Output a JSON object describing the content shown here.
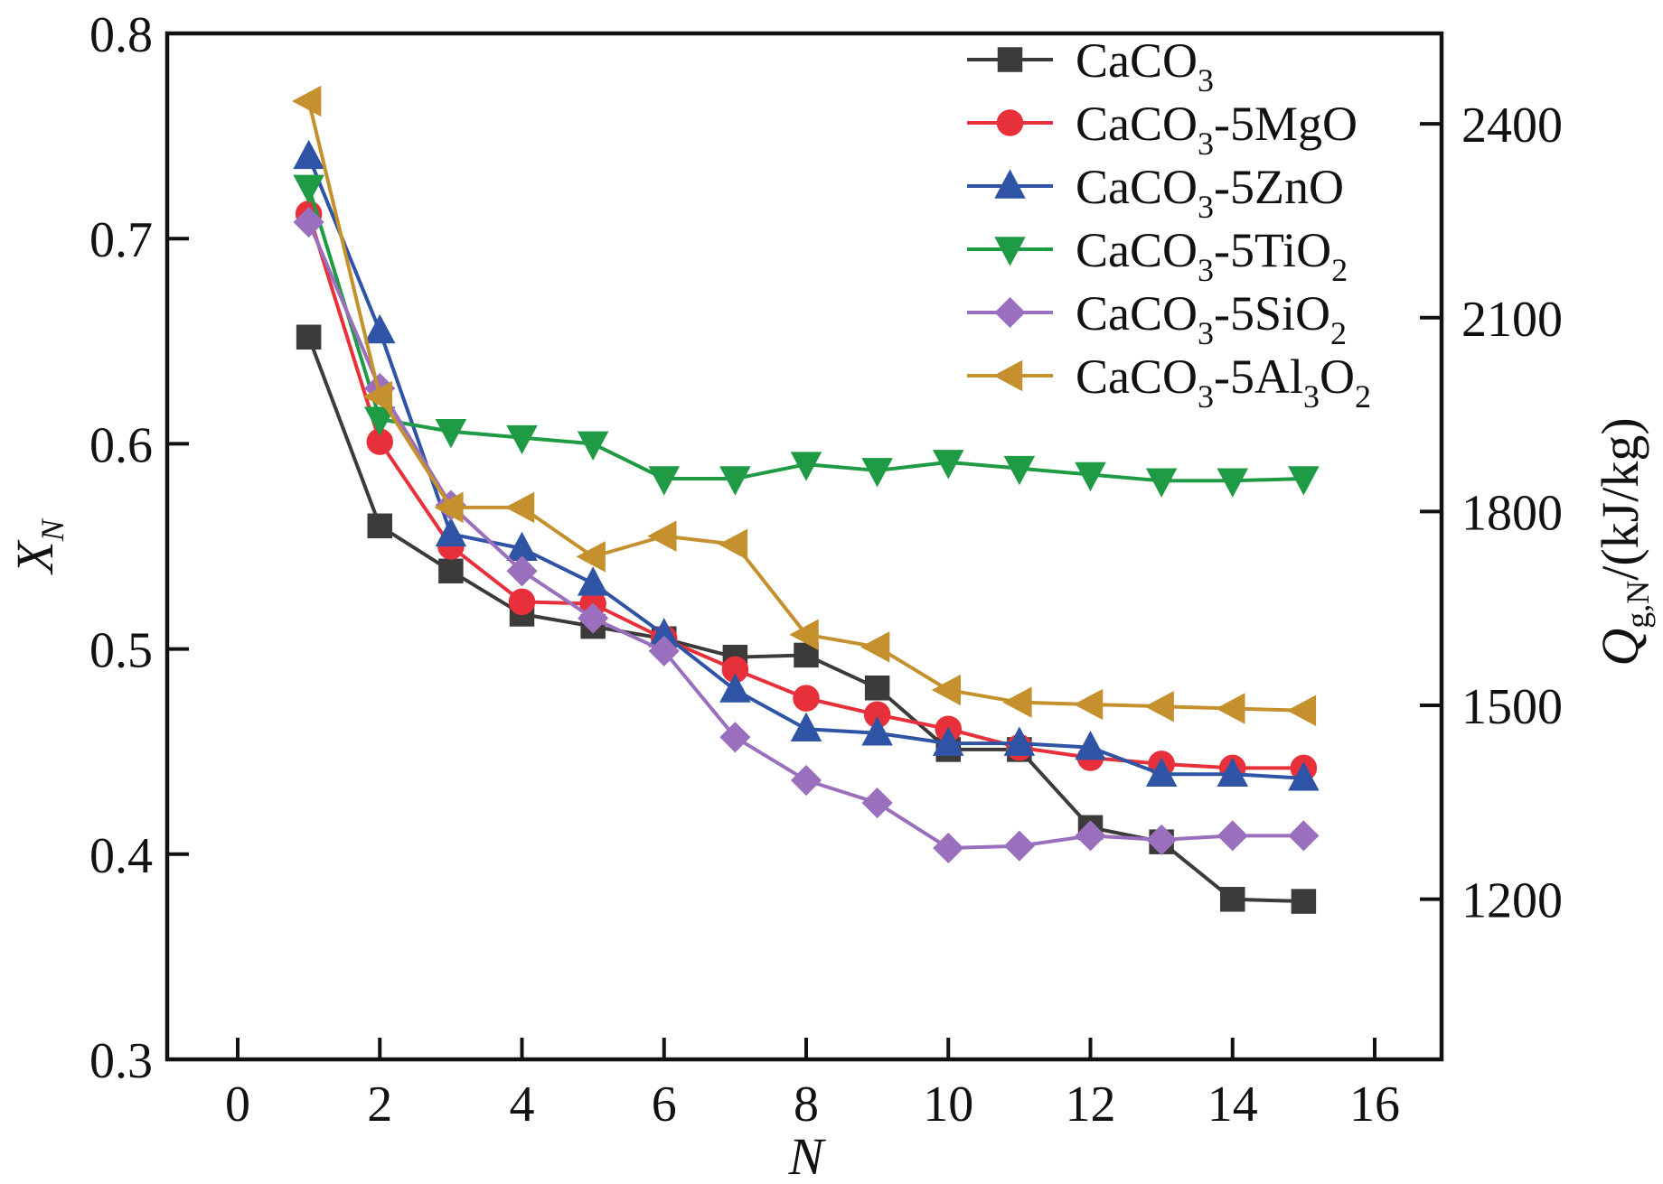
{
  "chart_data": {
    "type": "line",
    "title": "",
    "xlabel": "N",
    "ylabel": "X_N",
    "ylabel_main": "X",
    "ylabel_sub": "N",
    "y2label": "Q_g,N/(kJ/kg)",
    "y2label_main": "Q",
    "y2label_sub": "g,N",
    "y2label_unit": "/(kJ/kg)",
    "xlim": [
      -1,
      17
    ],
    "ylim": [
      0.3,
      0.8
    ],
    "y2lim": [
      952,
      2540
    ],
    "xticks": [
      0,
      2,
      4,
      6,
      8,
      10,
      12,
      14,
      16
    ],
    "xtick_labels": [
      "0",
      "2",
      "4",
      "6",
      "8",
      "10",
      "12",
      "14",
      "16"
    ],
    "yticks": [
      0.3,
      0.4,
      0.5,
      0.6,
      0.7,
      0.8
    ],
    "ytick_labels": [
      "0.3",
      "0.4",
      "0.5",
      "0.6",
      "0.7",
      "0.8"
    ],
    "y2ticks": [
      1200,
      1500,
      1800,
      2100,
      2400
    ],
    "y2tick_labels": [
      "1200",
      "1500",
      "1800",
      "2100",
      "2400"
    ],
    "grid": false,
    "legend_position": "top-right",
    "x": [
      1,
      2,
      3,
      4,
      5,
      6,
      7,
      8,
      9,
      10,
      11,
      12,
      13,
      14,
      15
    ],
    "series": [
      {
        "name": "CaCO3",
        "label_parts": [
          "CaCO",
          "3",
          ""
        ],
        "marker": "square",
        "color": "#3d3a3a",
        "values": [
          0.652,
          0.56,
          0.538,
          0.517,
          0.511,
          0.505,
          0.496,
          0.497,
          0.481,
          0.451,
          0.451,
          0.413,
          0.406,
          0.378,
          0.377
        ]
      },
      {
        "name": "CaCO3-5MgO",
        "label_parts": [
          "CaCO",
          "3",
          "-5MgO"
        ],
        "marker": "circle",
        "color": "#e8303a",
        "values": [
          0.712,
          0.601,
          0.55,
          0.523,
          0.522,
          0.505,
          0.49,
          0.476,
          0.468,
          0.461,
          0.452,
          0.447,
          0.444,
          0.442,
          0.442
        ]
      },
      {
        "name": "CaCO3-5ZnO",
        "label_parts": [
          "CaCO",
          "3",
          "-5ZnO"
        ],
        "marker": "triangle-up",
        "color": "#2f54a6",
        "values": [
          0.74,
          0.655,
          0.556,
          0.549,
          0.532,
          0.507,
          0.48,
          0.461,
          0.459,
          0.454,
          0.454,
          0.452,
          0.439,
          0.439,
          0.437
        ]
      },
      {
        "name": "CaCO3-5TiO2",
        "label_parts": [
          "CaCO",
          "3",
          "-5TiO",
          "2"
        ],
        "marker": "triangle-down",
        "color": "#1f9a45",
        "values": [
          0.725,
          0.612,
          0.606,
          0.603,
          0.6,
          0.583,
          0.583,
          0.59,
          0.587,
          0.591,
          0.588,
          0.585,
          0.582,
          0.582,
          0.583
        ]
      },
      {
        "name": "CaCO3-5SiO2",
        "label_parts": [
          "CaCO",
          "3",
          "-5SiO",
          "2"
        ],
        "marker": "diamond",
        "color": "#9a6fbd",
        "values": [
          0.708,
          0.627,
          0.57,
          0.538,
          0.515,
          0.499,
          0.457,
          0.436,
          0.425,
          0.403,
          0.404,
          0.409,
          0.407,
          0.409,
          0.409
        ]
      },
      {
        "name": "CaCO3-5Al3O2",
        "label_parts": [
          "CaCO",
          "3",
          "-5Al",
          "3",
          "O",
          "2"
        ],
        "marker": "triangle-left",
        "color": "#c5902e",
        "values": [
          0.767,
          0.623,
          0.569,
          0.569,
          0.545,
          0.555,
          0.551,
          0.507,
          0.501,
          0.48,
          0.474,
          0.473,
          0.472,
          0.471,
          0.47
        ]
      }
    ]
  }
}
